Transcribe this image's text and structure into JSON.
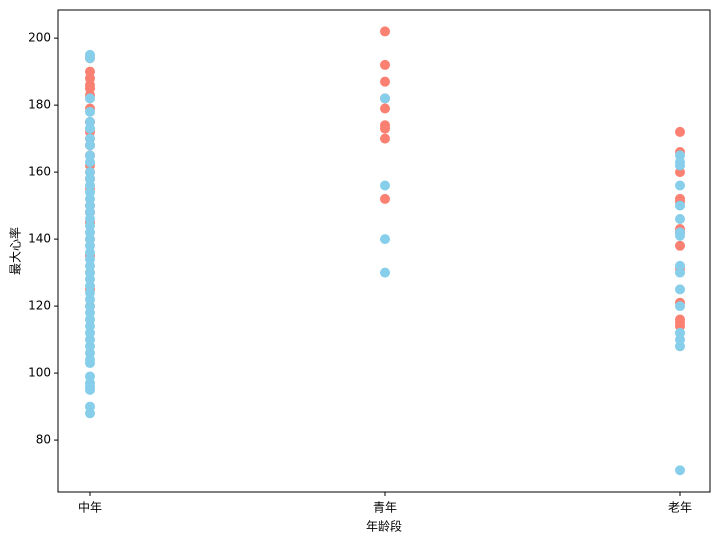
{
  "chart_data": {
    "type": "strip",
    "xlabel": "年龄段",
    "ylabel": "最大心率",
    "categories": [
      "中年",
      "青年",
      "老年"
    ],
    "ylim": [
      64.5,
      208.4
    ],
    "yticks": [
      80,
      100,
      120,
      140,
      160,
      180,
      200
    ],
    "series": [
      {
        "color": "#fa8072",
        "values": [
          [
            194,
            190,
            188,
            186,
            185,
            183,
            179,
            175,
            172,
            170,
            168,
            165,
            162,
            160,
            158,
            155,
            150,
            148,
            145,
            140,
            135,
            130,
            125,
            120
          ],
          [
            202,
            192,
            187,
            182,
            179,
            174,
            173,
            170,
            152
          ],
          [
            172,
            166,
            160,
            152,
            151,
            143,
            142,
            138,
            131,
            121,
            116,
            115,
            114
          ]
        ]
      },
      {
        "color": "#87ceeb",
        "values": [
          [
            195,
            194,
            182,
            178,
            175,
            173,
            170,
            168,
            165,
            163,
            160,
            158,
            156,
            154,
            152,
            150,
            148,
            146,
            144,
            142,
            140,
            138,
            136,
            134,
            132,
            130,
            128,
            126,
            124,
            122,
            120,
            118,
            116,
            114,
            112,
            110,
            108,
            106,
            104,
            103,
            99,
            97,
            96,
            95,
            90,
            88
          ],
          [
            182,
            156,
            140,
            130
          ],
          [
            165,
            163,
            162,
            156,
            150,
            146,
            142,
            141,
            132,
            130,
            125,
            120,
            112,
            110,
            108,
            71
          ]
        ]
      }
    ]
  }
}
